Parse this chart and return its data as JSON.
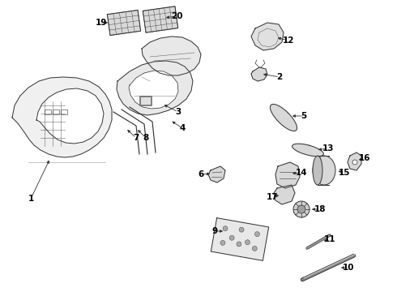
{
  "bg_color": "#ffffff",
  "line_color": "#333333",
  "text_color": "#000000",
  "lw": 0.7,
  "fig_w": 4.9,
  "fig_h": 3.6,
  "dpi": 100
}
